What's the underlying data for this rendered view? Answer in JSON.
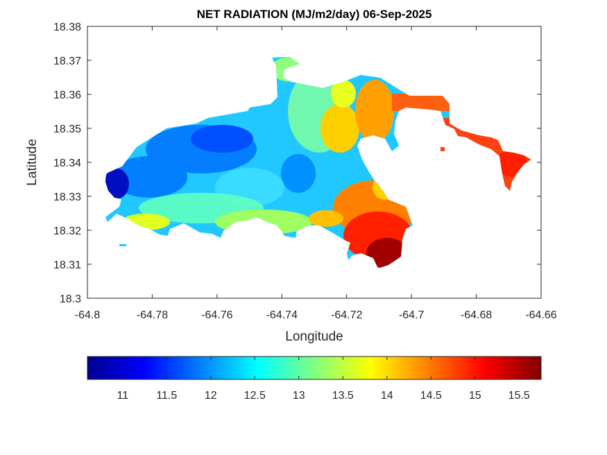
{
  "chart_data": {
    "type": "heatmap",
    "title": "NET RADIATION (MJ/m2/day) 06-Sep-2025",
    "xlabel": "Longitude",
    "ylabel": "Latitude",
    "xlim": [
      -64.8,
      -64.66
    ],
    "ylim": [
      18.3,
      18.38
    ],
    "xticks": [
      "-64.8",
      "-64.78",
      "-64.76",
      "-64.74",
      "-64.72",
      "-64.7",
      "-64.68",
      "-64.66"
    ],
    "yticks": [
      "18.3",
      "18.31",
      "18.32",
      "18.33",
      "18.34",
      "18.35",
      "18.36",
      "18.37",
      "18.38"
    ],
    "colorbar": {
      "colormap": "jet",
      "range": [
        10.6,
        15.75
      ],
      "ticks": [
        "11",
        "11.5",
        "12",
        "12.5",
        "13",
        "13.5",
        "14",
        "14.5",
        "15",
        "15.5"
      ]
    },
    "grid": false
  }
}
